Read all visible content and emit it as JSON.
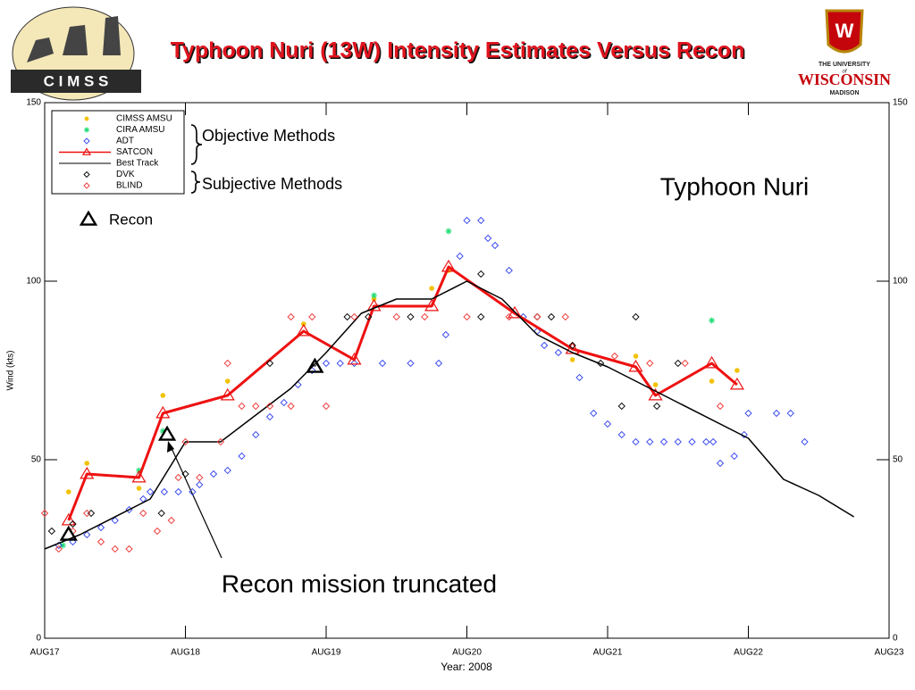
{
  "logos": {
    "cimss": "C I M S S",
    "university": "THE UNIVERSITY",
    "of": "of",
    "wisconsin": "WISCONSIN",
    "madison": "MADISON"
  },
  "chart_data": {
    "type": "scatter",
    "title": "Typhoon Nuri (13W) Intensity Estimates Versus Recon",
    "ylabel": "Wind (kts)",
    "xlabel": "Year: 2008",
    "annotations": {
      "objective": "Objective Methods",
      "subjective": "Subjective Methods",
      "storm": "Typhoon Nuri",
      "truncated": "Recon mission truncated"
    },
    "xlim": [
      0,
      6
    ],
    "xticks": [
      {
        "value": 0,
        "label": "AUG17"
      },
      {
        "value": 1,
        "label": "AUG18"
      },
      {
        "value": 2,
        "label": "AUG19"
      },
      {
        "value": 3,
        "label": "AUG20"
      },
      {
        "value": 4,
        "label": "AUG21"
      },
      {
        "value": 5,
        "label": "AUG22"
      },
      {
        "value": 6,
        "label": "AUG23"
      }
    ],
    "ylim": [
      0,
      150
    ],
    "yticks": [
      0,
      50,
      100,
      150
    ],
    "grid": false,
    "series": [
      {
        "name": "CIMSS AMSU",
        "color": "#f2c200",
        "marker": "circle",
        "line": false,
        "x": [
          0.17,
          0.3,
          0.67,
          0.84,
          1.3,
          1.84,
          2.34,
          2.75,
          2.87,
          3.75,
          4.2,
          4.34,
          4.74,
          4.92
        ],
        "values": [
          41,
          49,
          42,
          68,
          72,
          88,
          95,
          98,
          103,
          78,
          79,
          71,
          72,
          75
        ]
      },
      {
        "name": "CIRA AMSU",
        "color": "#22dd77",
        "marker": "asterisk",
        "line": false,
        "x": [
          0.13,
          0.67,
          0.84,
          2.34,
          2.87,
          4.74
        ],
        "values": [
          26,
          47,
          58,
          96,
          114,
          89
        ]
      },
      {
        "name": "ADT",
        "color": "#3344ee",
        "marker": "diamond",
        "line": false,
        "x": [
          0.1,
          0.2,
          0.3,
          0.4,
          0.5,
          0.6,
          0.7,
          0.75,
          0.85,
          0.95,
          1.05,
          1.1,
          1.2,
          1.3,
          1.4,
          1.5,
          1.6,
          1.7,
          1.8,
          1.9,
          2.0,
          2.1,
          2.2,
          2.4,
          2.6,
          2.8,
          2.85,
          2.95,
          3.0,
          3.1,
          3.15,
          3.2,
          3.3,
          3.4,
          3.5,
          3.55,
          3.65,
          3.8,
          3.9,
          4.0,
          4.1,
          4.2,
          4.3,
          4.4,
          4.5,
          4.6,
          4.7,
          4.75,
          4.8,
          4.9,
          4.97,
          5.0,
          5.2,
          5.3,
          5.4
        ],
        "values": [
          26,
          27,
          29,
          31,
          33,
          36,
          39,
          41,
          41,
          41,
          41,
          43,
          46,
          47,
          51,
          57,
          62,
          66,
          71,
          75,
          77,
          77,
          77,
          77,
          77,
          77,
          85,
          107,
          117,
          117,
          112,
          110,
          103,
          90,
          86,
          82,
          80,
          73,
          63,
          60,
          57,
          55,
          55,
          55,
          55,
          55,
          55,
          55,
          49,
          51,
          57,
          63,
          63,
          63,
          55
        ]
      },
      {
        "name": "SATCON",
        "color": "#ee1111",
        "marker": "triangle",
        "line": true,
        "x": [
          0.17,
          0.3,
          0.67,
          0.84,
          1.3,
          1.84,
          2.2,
          2.34,
          2.75,
          2.87,
          3.34,
          3.75,
          4.2,
          4.34,
          4.74,
          4.92
        ],
        "values": [
          33,
          46,
          45,
          63,
          68,
          86,
          78,
          93,
          93,
          104,
          91,
          81,
          76,
          68,
          77,
          71
        ]
      },
      {
        "name": "Best Track",
        "color": "#000000",
        "marker": "none",
        "line": true,
        "x": [
          0,
          0.25,
          0.75,
          1.0,
          1.25,
          1.75,
          2.0,
          2.25,
          2.5,
          2.75,
          3.0,
          3.25,
          3.5,
          3.75,
          4.0,
          4.5,
          5.0,
          5.25,
          5.5,
          5.75
        ],
        "values": [
          25,
          29,
          39,
          55,
          55,
          70,
          80,
          91,
          95,
          95,
          100,
          95,
          85,
          80,
          76,
          66,
          56,
          44.5,
          40,
          34
        ]
      },
      {
        "name": "DVK",
        "color": "#000000",
        "marker": "diamond",
        "line": false,
        "x": [
          0.05,
          0.2,
          0.33,
          0.83,
          1.0,
          1.6,
          1.92,
          2.15,
          2.3,
          2.6,
          3.1,
          3.1,
          3.5,
          3.6,
          3.75,
          3.95,
          4.1,
          4.2,
          4.35,
          4.5
        ],
        "values": [
          30,
          32,
          35,
          35,
          46,
          77,
          77,
          90,
          90,
          90,
          102,
          90,
          90,
          90,
          82,
          77,
          65,
          90,
          65,
          77
        ]
      },
      {
        "name": "BLIND",
        "color": "#ee3333",
        "marker": "diamond",
        "line": false,
        "x": [
          0.0,
          0.1,
          0.2,
          0.3,
          0.4,
          0.5,
          0.6,
          0.7,
          0.8,
          0.9,
          0.95,
          1.0,
          1.1,
          1.25,
          1.3,
          1.4,
          1.5,
          1.6,
          1.75,
          1.75,
          1.9,
          2.0,
          2.2,
          2.5,
          2.7,
          3.0,
          3.3,
          3.5,
          3.7,
          4.05,
          4.3,
          4.55,
          4.8
        ],
        "values": [
          35,
          25,
          30,
          35,
          27,
          25,
          25,
          35,
          30,
          33,
          45,
          55,
          45,
          55,
          77,
          65,
          65,
          65,
          65,
          90,
          90,
          65,
          90,
          90,
          90,
          90,
          90,
          90,
          90,
          79,
          77,
          77,
          65
        ]
      },
      {
        "name": "Recon",
        "color": "#000000",
        "marker": "recon",
        "line": false,
        "x": [
          0.17,
          0.87,
          1.92
        ],
        "values": [
          29,
          57,
          76
        ]
      }
    ]
  }
}
